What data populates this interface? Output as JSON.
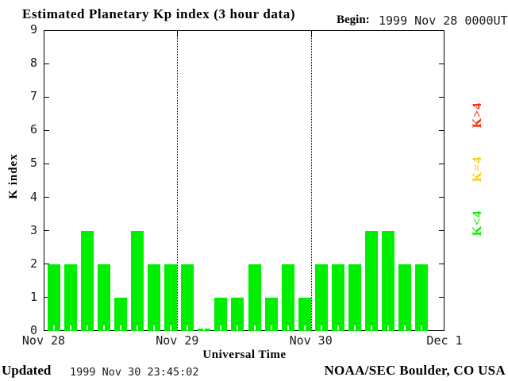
{
  "title": "Estimated Planetary Kp index (3 hour data)",
  "begin": {
    "label": "Begin:",
    "value": "1999 Nov 28 0000UT"
  },
  "legend": [
    {
      "id": "gt",
      "label": "K>4",
      "color": "#ff2200"
    },
    {
      "id": "eq",
      "label": "K=4",
      "color": "#ffcc00"
    },
    {
      "id": "lt",
      "label": "K<4",
      "color": "#00ee00"
    }
  ],
  "footer": {
    "updated_label": "Updated",
    "updated_value": "1999 Nov 30 23:45:02",
    "credit": "NOAA/SEC Boulder, CO USA"
  },
  "chart_data": {
    "type": "bar",
    "title": "Estimated Planetary Kp index (3 hour data)",
    "xlabel": "Universal Time",
    "ylabel": "K index",
    "ylim": [
      0,
      9
    ],
    "yticks": [
      0,
      1,
      2,
      3,
      4,
      5,
      6,
      7,
      8,
      9
    ],
    "interval_hours": 3,
    "slots_total": 24,
    "grid": "dotted vertical lines at day boundaries",
    "legend_position": "right, rotated 90deg",
    "bar_color": "#00ee00",
    "x_day_labels": [
      "Nov 28",
      "Nov 29",
      "Nov 30",
      "Dec 1"
    ],
    "values": [
      2,
      2,
      3,
      2,
      1,
      3,
      2,
      2,
      2,
      0,
      1,
      1,
      2,
      1,
      2,
      1,
      2,
      2,
      2,
      3,
      3,
      2,
      2
    ],
    "days": [
      {
        "date": "Nov 28",
        "values": [
          2,
          2,
          3,
          2,
          1,
          3,
          2,
          2
        ]
      },
      {
        "date": "Nov 29",
        "values": [
          2,
          0,
          1,
          1,
          2,
          1,
          2,
          1
        ]
      },
      {
        "date": "Nov 30",
        "values": [
          2,
          2,
          2,
          3,
          3,
          2,
          2
        ]
      }
    ]
  }
}
